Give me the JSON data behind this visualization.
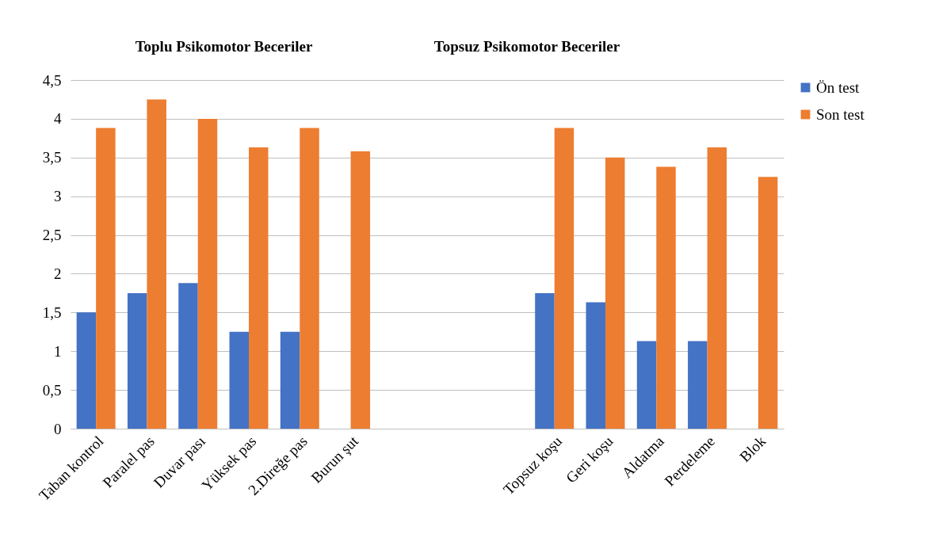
{
  "chart_data": {
    "type": "bar",
    "annotations": [
      "Toplu Psikomotor Beceriler",
      "Topsuz Psikomotor Beceriler"
    ],
    "categories": [
      "Taban kontrol",
      "Paralel pas",
      "Duvar pası",
      "Yüksek pas",
      "2.Direğe pas",
      "Burun şut",
      null,
      null,
      null,
      "Topsuz koşu",
      "Geri koşu",
      "Aldatma",
      "Perdeleme",
      "Blok"
    ],
    "series": [
      {
        "name": "Ön test",
        "color": "#4472c4",
        "values": [
          1.5,
          1.75,
          1.88,
          1.25,
          1.25,
          null,
          null,
          null,
          null,
          1.75,
          1.63,
          1.13,
          1.13,
          null
        ]
      },
      {
        "name": "Son test",
        "color": "#ed7d31",
        "values": [
          3.88,
          4.25,
          4,
          3.63,
          3.88,
          3.58,
          null,
          null,
          null,
          3.88,
          3.5,
          3.38,
          3.63,
          3.25
        ]
      }
    ],
    "ylim": [
      0,
      4.5
    ],
    "yticks": [
      0,
      {
        "value": 0.5,
        "label": "0,5"
      },
      1,
      {
        "value": 1.5,
        "label": "1,5"
      },
      2,
      {
        "value": 2.5,
        "label": "2,5"
      },
      3,
      {
        "value": 3.5,
        "label": "3,5"
      },
      4,
      {
        "value": 4.5,
        "label": "4,5"
      }
    ],
    "grid": "y",
    "legend": "right"
  }
}
